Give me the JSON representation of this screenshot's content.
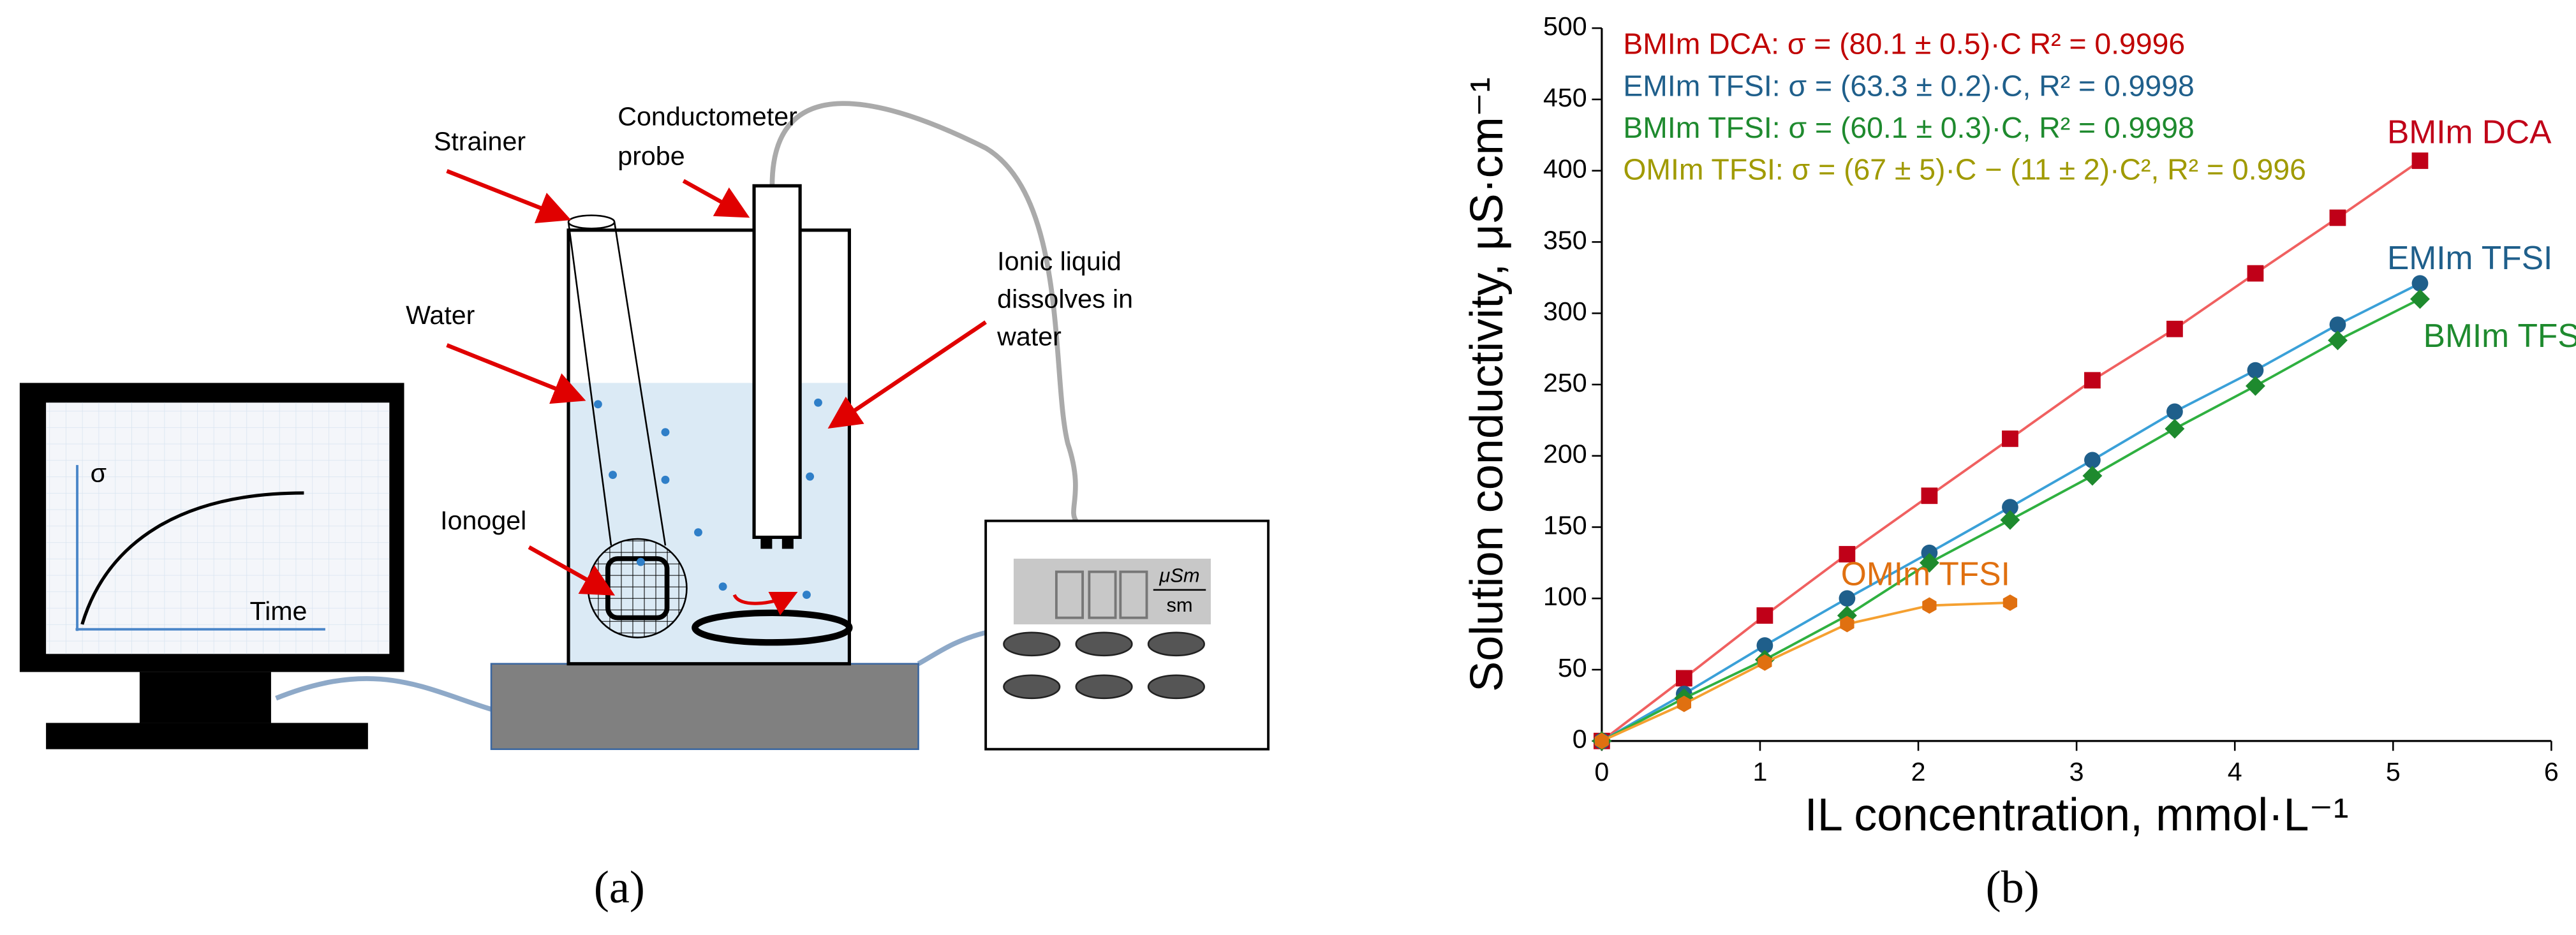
{
  "diagram": {
    "panel_label": "(a)",
    "strainer": "Strainer",
    "probe": [
      "Conductometer",
      "probe"
    ],
    "water": "Water",
    "ionic_liquid": [
      "Ionic liquid",
      "dissolves in",
      "water"
    ],
    "ionogel": "Ionogel",
    "screen_y_label": "σ",
    "screen_x_label": "Time",
    "unit_top": "μSm",
    "unit_bottom": "sm"
  },
  "chart_data": {
    "type": "scatter",
    "panel_label": "(b)",
    "x_label": "IL concentration, mmol·L⁻¹",
    "y_label": "Solution conductivity, μS·cm⁻¹",
    "xlim": [
      0,
      6
    ],
    "xticks": [
      0,
      1,
      2,
      3,
      4,
      5,
      6
    ],
    "ylim": [
      0,
      500
    ],
    "yticks": [
      0,
      50,
      100,
      150,
      200,
      250,
      300,
      350,
      400,
      450,
      500
    ],
    "annotations": [
      {
        "text": "BMIm DCA: σ = (80.1 ± 0.5)·C R² = 0.9996",
        "color": "#c00000"
      },
      {
        "text": "EMIm TFSI: σ = (63.3 ± 0.2)·C, R² = 0.9998",
        "color": "#1f5f8b"
      },
      {
        "text": "BMIm TFSI: σ = (60.1 ± 0.3)·C, R² = 0.9998",
        "color": "#1e8a2e"
      },
      {
        "text": "OMIm TFSI: σ = (67 ± 5)·C − (11 ± 2)·C², R² = 0.996",
        "color": "#a09a00"
      }
    ],
    "series": [
      {
        "name": "BMIm DCA",
        "color": "#c00018",
        "line_color": "#f06060",
        "marker": "square",
        "x": [
          0,
          0.52,
          1.03,
          1.55,
          2.07,
          2.58,
          3.1,
          3.62,
          4.13,
          4.65,
          5.17
        ],
        "values": [
          0,
          44,
          88,
          131,
          172,
          212,
          253,
          289,
          328,
          367,
          407
        ]
      },
      {
        "name": "EMIm TFSI",
        "color": "#1f5f8b",
        "line_color": "#3aa0d8",
        "marker": "circle",
        "x": [
          0,
          0.52,
          1.03,
          1.55,
          2.07,
          2.58,
          3.1,
          3.62,
          4.13,
          4.65,
          5.17
        ],
        "values": [
          0,
          33,
          67,
          100,
          132,
          164,
          197,
          231,
          260,
          292,
          321
        ]
      },
      {
        "name": "BMIm TFSI",
        "color": "#1e8a2e",
        "line_color": "#2fb040",
        "marker": "diamond",
        "x": [
          0,
          0.52,
          1.03,
          1.55,
          2.07,
          2.58,
          3.1,
          3.62,
          4.13,
          4.65,
          5.17
        ],
        "values": [
          0,
          30,
          57,
          88,
          125,
          155,
          186,
          219,
          249,
          281,
          310
        ]
      },
      {
        "name": "OMIm TFSI",
        "color": "#e07010",
        "line_color": "#f5a030",
        "marker": "hexagon",
        "x": [
          0,
          0.52,
          1.03,
          1.55,
          2.07,
          2.58
        ],
        "values": [
          0,
          26,
          55,
          82,
          95,
          97
        ]
      }
    ]
  }
}
